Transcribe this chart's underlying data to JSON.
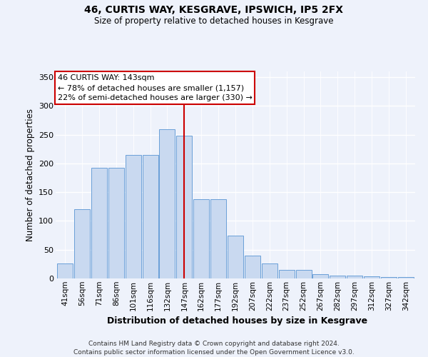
{
  "title1": "46, CURTIS WAY, KESGRAVE, IPSWICH, IP5 2FX",
  "title2": "Size of property relative to detached houses in Kesgrave",
  "xlabel": "Distribution of detached houses by size in Kesgrave",
  "ylabel": "Number of detached properties",
  "categories": [
    "41sqm",
    "56sqm",
    "71sqm",
    "86sqm",
    "101sqm",
    "116sqm",
    "132sqm",
    "147sqm",
    "162sqm",
    "177sqm",
    "192sqm",
    "207sqm",
    "222sqm",
    "237sqm",
    "252sqm",
    "267sqm",
    "282sqm",
    "297sqm",
    "312sqm",
    "327sqm",
    "342sqm"
  ],
  "bar_values": [
    26,
    120,
    193,
    193,
    215,
    215,
    260,
    248,
    138,
    138,
    75,
    40,
    26,
    15,
    15,
    8,
    5,
    5,
    4,
    3,
    2
  ],
  "bar_color": "#c9d9f0",
  "bar_edge_color": "#6a9fd8",
  "vline_x": 7,
  "vline_label": "46 CURTIS WAY: 143sqm",
  "annotation_line1": "← 78% of detached houses are smaller (1,157)",
  "annotation_line2": "22% of semi-detached houses are larger (330) →",
  "annotation_box_color": "#ffffff",
  "annotation_box_edge": "#cc0000",
  "vline_color": "#cc0000",
  "ylim": [
    0,
    360
  ],
  "yticks": [
    0,
    50,
    100,
    150,
    200,
    250,
    300,
    350
  ],
  "footer": "Contains HM Land Registry data © Crown copyright and database right 2024.\nContains public sector information licensed under the Open Government Licence v3.0.",
  "background_color": "#eef2fb",
  "plot_background": "#eef2fb",
  "grid_color": "#ffffff"
}
